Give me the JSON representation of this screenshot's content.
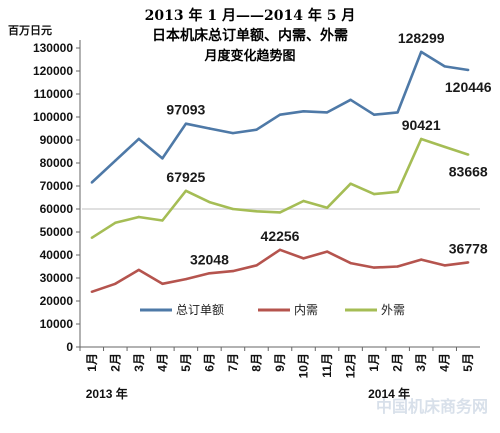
{
  "chart_data": {
    "type": "line",
    "title_lines": [
      "2013 年 1 月——2014 年 5 月",
      "日本机床总订单额、内需、外需",
      "月度变化趋势图"
    ],
    "ylabel": "百万日元",
    "ylim": [
      0,
      130000
    ],
    "yticks": [
      0,
      10000,
      20000,
      30000,
      40000,
      50000,
      60000,
      70000,
      80000,
      90000,
      100000,
      110000,
      120000,
      130000
    ],
    "categories": [
      "1月",
      "2月",
      "3月",
      "4月",
      "5月",
      "6月",
      "7月",
      "8月",
      "9月",
      "10月",
      "11月",
      "12月",
      "1月",
      "2月",
      "3月",
      "4月",
      "5月"
    ],
    "year_labels": [
      {
        "text": "2013 年",
        "category_index": 0
      },
      {
        "text": "2014 年",
        "category_index": 12
      }
    ],
    "grid": false,
    "legend_position": "inside-bottom",
    "series": [
      {
        "name": "总订单额",
        "color": "#4e79a7",
        "values": [
          71500,
          81000,
          90500,
          82000,
          97093,
          95000,
          93000,
          94500,
          101000,
          102500,
          102000,
          107500,
          101000,
          102000,
          128299,
          122000,
          120446
        ]
      },
      {
        "name": "内需",
        "color": "#b5544e",
        "values": [
          24000,
          27500,
          33500,
          27500,
          29500,
          32048,
          33000,
          35500,
          42256,
          38500,
          41500,
          36500,
          34500,
          35000,
          38000,
          35500,
          36778
        ]
      },
      {
        "name": "外需",
        "color": "#a5bd55",
        "values": [
          47500,
          54000,
          56500,
          55000,
          67925,
          63000,
          60000,
          59000,
          58500,
          63500,
          60500,
          71000,
          66500,
          67500,
          90421,
          87000,
          83668
        ]
      }
    ],
    "data_labels": [
      {
        "text": "97093",
        "series": 0,
        "index": 4,
        "pos": "above"
      },
      {
        "text": "128299",
        "series": 0,
        "index": 14,
        "pos": "above"
      },
      {
        "text": "120446",
        "series": 0,
        "index": 16,
        "pos": "below"
      },
      {
        "text": "67925",
        "series": 2,
        "index": 4,
        "pos": "above"
      },
      {
        "text": "90421",
        "series": 2,
        "index": 14,
        "pos": "above"
      },
      {
        "text": "83668",
        "series": 2,
        "index": 16,
        "pos": "below"
      },
      {
        "text": "32048",
        "series": 1,
        "index": 5,
        "pos": "above"
      },
      {
        "text": "42256",
        "series": 1,
        "index": 8,
        "pos": "above"
      },
      {
        "text": "36778",
        "series": 1,
        "index": 16,
        "pos": "above"
      }
    ]
  },
  "watermark": "中国机床商务网"
}
